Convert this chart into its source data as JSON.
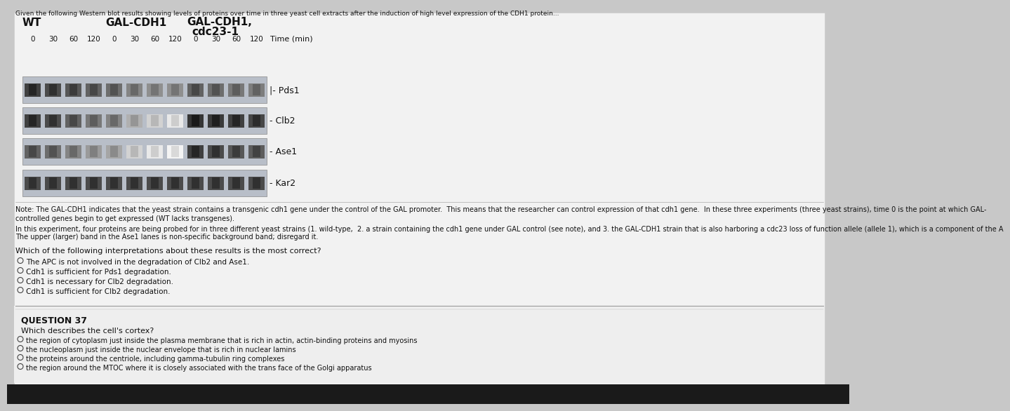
{
  "bg_color": "#c8c8c8",
  "content_bg": "#f0f0f0",
  "title_text": "Given the following Western blot results showing levels of proteins over time in three yeast cell extracts after the induction of high level expression of the CDH1 protein...",
  "note_text": "Note: The GAL-CDH1 indicates that the yeast strain contains a transgenic cdh1 gene under the control of the GAL promoter.  This means that the researcher can control expression of that cdh1 gene.  In these three experiments (three yeast strains), time 0 is the point at which GAL-\ncontrolled genes begin to get expressed (WT lacks transgenes).",
  "experiment_line1": "In this experiment, four proteins are being probed for in three different yeast strains (1. wild-type,  2. a strain containing the cdh1 gene under GAL control (see note), and 3. the GAL-CDH1 strain that is also harboring a cdc23 loss of function allele (allele 1), which is a component of the A",
  "experiment_line2": "The upper (larger) band in the Ase1 lanes is non-specific background band; disregard it.",
  "question_stem": "Which of the following interpretations about these results is the most correct?",
  "answer_choices": [
    "The APC is not involved in the degradation of Clb2 and Ase1.",
    "Cdh1 is sufficient for Pds1 degradation.",
    "Cdh1 is necessary for Clb2 degradation.",
    "Cdh1 is sufficient for Clb2 degradation."
  ],
  "question37_header": "QUESTION 37",
  "question37_stem": "Which describes the cell's cortex?",
  "question37_choices": [
    "the region of cytoplasm just inside the plasma membrane that is rich in actin, actin-binding proteins and myosins",
    "the nucleoplasm just inside the nuclear envelope that is rich in nuclear lamins",
    "the proteins around the centriole, including gamma-tubulin ring complexes",
    "the region around the MTOC where it is closely associated with the trans face of the Golgi apparatus"
  ],
  "protein_labels": [
    "|- Pds1",
    "- Clb2",
    "- Ase1",
    "- Kar2"
  ]
}
